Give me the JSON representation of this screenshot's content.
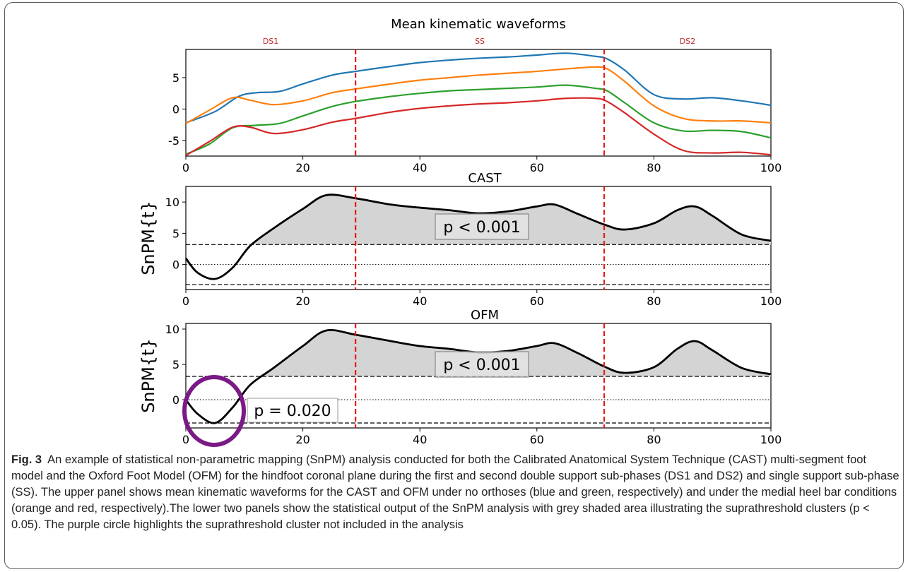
{
  "chart_data": [
    {
      "type": "line",
      "title": "Mean kinematic waveforms",
      "phases": [
        "DS1",
        "SS",
        "DS2"
      ],
      "phase_boundaries": [
        29,
        71.5
      ],
      "xlim": [
        0,
        100
      ],
      "ylim": [
        -7.5,
        9.5
      ],
      "xticks": [
        0,
        20,
        40,
        60,
        80,
        100
      ],
      "yticks": [
        -5,
        0,
        5
      ],
      "series": [
        {
          "color": "#1f77b4",
          "x": [
            0,
            5,
            9,
            12,
            16,
            20,
            25,
            29,
            35,
            40,
            45,
            50,
            55,
            60,
            65,
            70,
            72,
            75,
            80,
            85,
            90,
            95,
            100
          ],
          "y": [
            -2.2,
            -0.4,
            2,
            2.6,
            2.8,
            4,
            5.4,
            6,
            6.8,
            7.4,
            7.8,
            8.1,
            8.3,
            8.6,
            8.9,
            8.4,
            8,
            6.2,
            2.3,
            1.6,
            1.8,
            1.3,
            0.6
          ]
        },
        {
          "color": "#ff7f0e",
          "x": [
            0,
            4,
            8,
            11,
            15,
            20,
            25,
            29,
            35,
            40,
            45,
            50,
            55,
            60,
            65,
            70,
            72,
            75,
            80,
            85,
            90,
            95,
            100
          ],
          "y": [
            -2.3,
            -0.2,
            1.8,
            1.4,
            0.7,
            1.3,
            2.6,
            3.2,
            4,
            4.6,
            5,
            5.4,
            5.7,
            6,
            6.4,
            6.7,
            6.4,
            4.4,
            0.5,
            -1.5,
            -1.9,
            -1.9,
            -2.2
          ]
        },
        {
          "color": "#2ca02c",
          "x": [
            0,
            4,
            8,
            12,
            16,
            20,
            25,
            29,
            35,
            40,
            45,
            50,
            55,
            60,
            65,
            70,
            72,
            75,
            80,
            85,
            90,
            95,
            100
          ],
          "y": [
            -7.2,
            -5.6,
            -3,
            -2.6,
            -2.3,
            -1.1,
            0.4,
            1.2,
            2,
            2.5,
            2.9,
            3.1,
            3.3,
            3.5,
            3.8,
            3.3,
            2.9,
            1,
            -2.2,
            -3.5,
            -3.4,
            -3.6,
            -4.6
          ]
        },
        {
          "color": "#d62728",
          "x": [
            0,
            4,
            8,
            11,
            15,
            20,
            25,
            29,
            35,
            40,
            45,
            50,
            55,
            60,
            65,
            70,
            72,
            75,
            80,
            85,
            90,
            95,
            100
          ],
          "y": [
            -7.4,
            -5.2,
            -2.9,
            -2.9,
            -3.9,
            -3.3,
            -2.1,
            -1.5,
            -0.5,
            0.1,
            0.5,
            0.8,
            1,
            1.3,
            1.7,
            1.7,
            1.2,
            -0.6,
            -4,
            -6.6,
            -7,
            -6.9,
            -7.3
          ]
        }
      ]
    },
    {
      "type": "area",
      "title": "CAST",
      "ylabel": "SnPM{t}",
      "xlim": [
        0,
        100
      ],
      "ylim": [
        -4,
        12.5
      ],
      "xticks": [
        0,
        20,
        40,
        60,
        80,
        100
      ],
      "yticks": [
        0,
        5,
        10
      ],
      "threshold": 3.2,
      "phase_boundaries": [
        29,
        71.5
      ],
      "annotation": "p < 0.001",
      "x": [
        0,
        2,
        5,
        8,
        11,
        15,
        20,
        24,
        29,
        35,
        40,
        45,
        50,
        55,
        60,
        63,
        67,
        71.5,
        75,
        80,
        84,
        87,
        90,
        95,
        100
      ],
      "y": [
        1,
        -1.3,
        -2.3,
        -0.5,
        3,
        5.8,
        8.9,
        11.1,
        10.6,
        9.6,
        9.1,
        8.7,
        8.2,
        8.5,
        9.3,
        9.6,
        8.1,
        6.4,
        5.6,
        6.6,
        8.7,
        9.3,
        7.8,
        4.8,
        3.8
      ]
    },
    {
      "type": "area",
      "title": "OFM",
      "ylabel": "SnPM{t}",
      "xlim": [
        0,
        100
      ],
      "ylim": [
        -4,
        10.8
      ],
      "xticks": [
        0,
        20,
        40,
        60,
        80,
        100
      ],
      "yticks": [
        0,
        5,
        10
      ],
      "threshold": 3.3,
      "phase_boundaries": [
        29,
        71.5
      ],
      "annotations": [
        "p < 0.001",
        "p = 0.020"
      ],
      "x": [
        0,
        2,
        5,
        8,
        11,
        15,
        20,
        24,
        29,
        35,
        40,
        45,
        50,
        55,
        60,
        63,
        67,
        71.5,
        75,
        80,
        84,
        87,
        90,
        95,
        100
      ],
      "y": [
        0,
        -2,
        -3.3,
        -1.1,
        2.1,
        4.5,
        7.6,
        9.8,
        9.2,
        8.3,
        7.6,
        7.2,
        6.7,
        6.9,
        7.6,
        8,
        6.6,
        4.7,
        3.8,
        4.6,
        7.2,
        8.3,
        7,
        4.5,
        3.6
      ]
    }
  ],
  "caption": {
    "label": "Fig. 3",
    "text": "An example of statistical non-parametric mapping (SnPM) analysis conducted for both the Calibrated Anatomical System Technique (CAST) multi-segment foot model and the Oxford Foot Model (OFM) for the hindfoot coronal plane during the first and second double support sub-phases (DS1 and DS2) and single support sub-phase (SS). The upper panel shows mean kinematic waveforms for the CAST and OFM under no orthoses (blue and green, respectively) and under the medial heel bar conditions (orange and red, respectively).The lower two panels show the statistical output of the SnPM analysis with grey shaded area illustrating the suprathreshold clusters (p < 0.05). The purple circle highlights the suprathreshold cluster not included in the analysis"
  },
  "colors": {
    "phase_line": "#e8191a",
    "phase_label": "#c0282b",
    "cluster_fill": "#d4d4d4",
    "circle": "#7b1a86"
  }
}
